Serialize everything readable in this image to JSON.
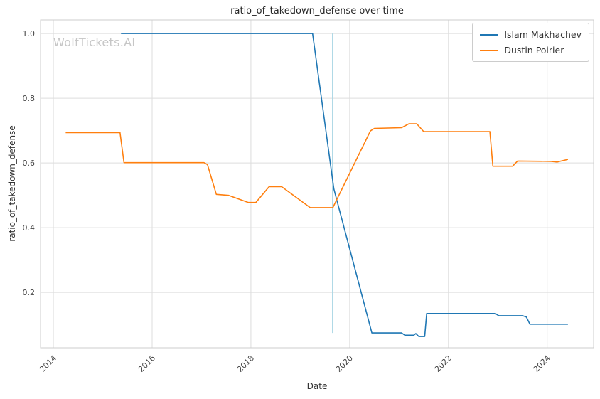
{
  "watermark": "WolfTickets.AI",
  "chart_data": {
    "type": "line",
    "title": "ratio_of_takedown_defense over time",
    "xlabel": "Date",
    "ylabel": "ratio_of_takedown_defense",
    "xlim": [
      2013.74,
      2024.94
    ],
    "ylim": [
      0.029,
      1.042
    ],
    "xticks": [
      2014,
      2016,
      2018,
      2020,
      2022,
      2024
    ],
    "yticks": [
      0.2,
      0.4,
      0.6,
      0.8,
      1.0
    ],
    "grid": true,
    "grid_color": "#dddddd",
    "spine_color": "#cccccc",
    "tick_color": "#444444",
    "background": "#ffffff",
    "legend_position": "upper right",
    "event_vline": {
      "x": 2019.65,
      "y0": 0.075,
      "y1": 1.0,
      "color": "#add8e6"
    },
    "series": [
      {
        "name": "Islam Makhachev",
        "color": "#1f77b4",
        "points": [
          [
            2015.37,
            1.0
          ],
          [
            2019.25,
            1.0
          ],
          [
            2019.68,
            0.52
          ],
          [
            2020.45,
            0.075
          ],
          [
            2021.05,
            0.075
          ],
          [
            2021.12,
            0.068
          ],
          [
            2021.3,
            0.068
          ],
          [
            2021.34,
            0.073
          ],
          [
            2021.4,
            0.064
          ],
          [
            2021.52,
            0.064
          ],
          [
            2021.56,
            0.135
          ],
          [
            2022.95,
            0.135
          ],
          [
            2023.02,
            0.128
          ],
          [
            2023.5,
            0.128
          ],
          [
            2023.58,
            0.124
          ],
          [
            2023.65,
            0.102
          ],
          [
            2024.42,
            0.102
          ]
        ]
      },
      {
        "name": "Dustin Poirier",
        "color": "#ff7f0e",
        "points": [
          [
            2014.25,
            0.694
          ],
          [
            2015.35,
            0.694
          ],
          [
            2015.43,
            0.601
          ],
          [
            2017.05,
            0.601
          ],
          [
            2017.12,
            0.595
          ],
          [
            2017.3,
            0.503
          ],
          [
            2017.55,
            0.5
          ],
          [
            2017.95,
            0.478
          ],
          [
            2018.1,
            0.478
          ],
          [
            2018.37,
            0.527
          ],
          [
            2018.62,
            0.527
          ],
          [
            2019.2,
            0.462
          ],
          [
            2019.66,
            0.462
          ],
          [
            2020.42,
            0.699
          ],
          [
            2020.5,
            0.707
          ],
          [
            2021.05,
            0.709
          ],
          [
            2021.2,
            0.721
          ],
          [
            2021.36,
            0.721
          ],
          [
            2021.5,
            0.697
          ],
          [
            2022.84,
            0.697
          ],
          [
            2022.9,
            0.59
          ],
          [
            2023.3,
            0.59
          ],
          [
            2023.4,
            0.606
          ],
          [
            2024.08,
            0.605
          ],
          [
            2024.2,
            0.603
          ],
          [
            2024.42,
            0.611
          ]
        ]
      }
    ]
  }
}
